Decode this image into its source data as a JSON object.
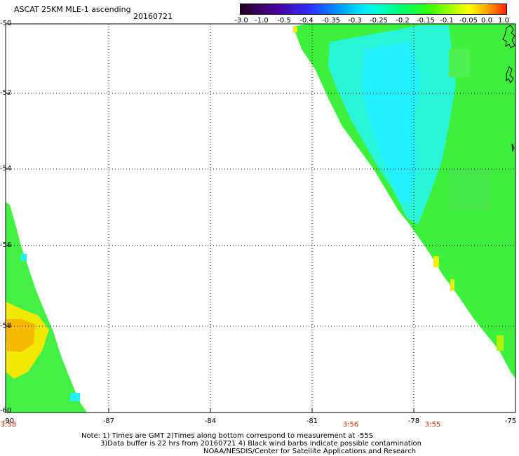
{
  "header": {
    "title": "ASCAT 25KM MLE-1 ascending",
    "date": "20160721"
  },
  "colorbar": {
    "ticks": [
      "-3.0",
      "-1.0",
      "-0.5",
      "-0.4",
      "-0.35",
      "-0.3",
      "-0.25",
      "-0.2",
      "-0.15",
      "-0.1",
      "-0.05",
      "0.0",
      "1.0"
    ],
    "colors": [
      "#200020",
      "#4b00a0",
      "#2d2dff",
      "#0090ff",
      "#00e8ff",
      "#00ff60",
      "#40ff00",
      "#b0ff00",
      "#ffff00",
      "#ff2000"
    ]
  },
  "map": {
    "lat_labels": [
      "-50",
      "-52",
      "-54",
      "-56",
      "-58",
      "-60"
    ],
    "lon_labels": [
      "-90",
      "-87",
      "-84",
      "-81",
      "-78",
      "-75"
    ],
    "lat_range": [
      -60,
      -50
    ],
    "lon_range": [
      -90,
      -75
    ],
    "time_labels": [
      "3:58",
      "3:56",
      "3:55"
    ]
  },
  "notes": {
    "line1": "Note: 1) Times are GMT 2)Times along bottom correspond to measurement at -55S",
    "line2": "3)Data buffer is 22 hrs from 20160721 4) Black wind barbs indicate possible contamination",
    "line3": "NOAA/NESDIS/Center for Satellite Applications and Research"
  }
}
